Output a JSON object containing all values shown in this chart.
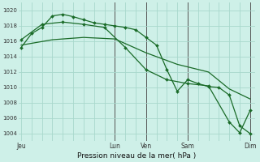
{
  "bg_color": "#cef0e8",
  "grid_color": "#a8d8cc",
  "line_color": "#1a6b28",
  "marker_color": "#1a6b28",
  "xlabel": "Pression niveau de la mer( hPa )",
  "ylim": [
    1003.0,
    1021.0
  ],
  "yticks": [
    1004,
    1006,
    1008,
    1010,
    1012,
    1014,
    1016,
    1018,
    1020
  ],
  "xtick_labels": [
    "Jeu",
    "Lun",
    "Ven",
    "Sam",
    "Dim"
  ],
  "xtick_positions": [
    0,
    36,
    48,
    64,
    88
  ],
  "vline_positions": [
    36,
    48,
    64,
    88
  ],
  "series1_x": [
    0,
    4,
    8,
    12,
    16,
    20,
    24,
    28,
    32,
    36,
    40,
    44,
    48,
    52,
    56,
    60,
    64,
    68,
    72,
    76,
    80,
    84,
    88
  ],
  "series1_y": [
    1015.2,
    1017.0,
    1017.8,
    1019.3,
    1019.5,
    1019.2,
    1018.8,
    1018.4,
    1018.2,
    1018.0,
    1017.8,
    1017.5,
    1016.5,
    1015.5,
    1012.3,
    1009.5,
    1011.0,
    1010.5,
    1010.1,
    1010.0,
    1009.0,
    1005.0,
    1004.0
  ],
  "series2_x": [
    0,
    8,
    16,
    24,
    32,
    40,
    48,
    56,
    64,
    72,
    80,
    84,
    88
  ],
  "series2_y": [
    1016.2,
    1018.2,
    1018.5,
    1018.2,
    1017.8,
    1015.2,
    1012.3,
    1011.0,
    1010.5,
    1010.2,
    1005.5,
    1004.1,
    1007.0
  ],
  "series3_x": [
    0,
    12,
    24,
    36,
    48,
    60,
    72,
    80,
    88
  ],
  "series3_y": [
    1015.5,
    1016.2,
    1016.5,
    1016.3,
    1014.5,
    1013.0,
    1012.0,
    1009.8,
    1008.5
  ]
}
